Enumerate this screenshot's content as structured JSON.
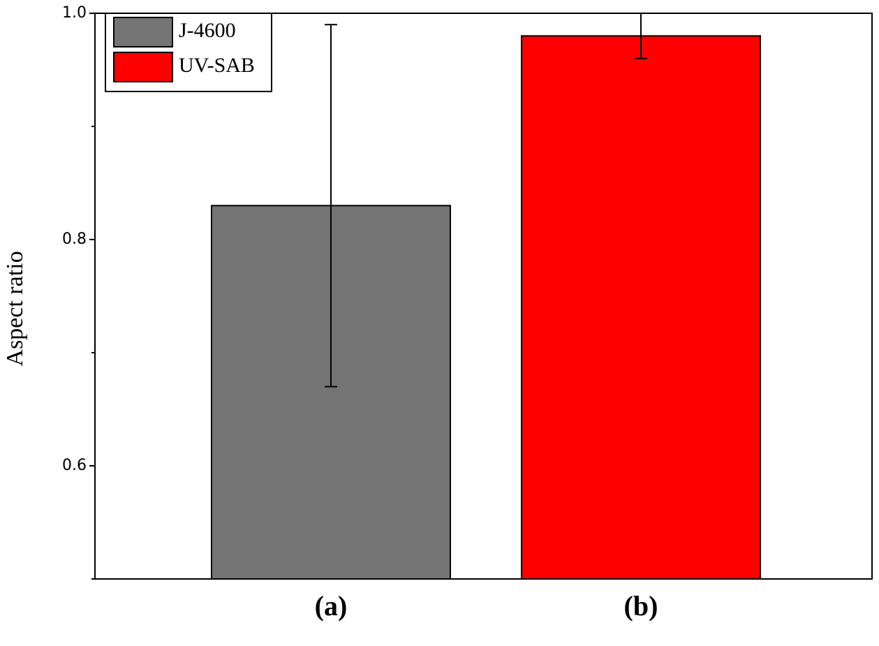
{
  "chart_data": {
    "type": "bar",
    "ylabel": "Aspect ratio",
    "categories": [
      "(a)",
      "(b)"
    ],
    "values": [
      0.83,
      0.98
    ],
    "errors": [
      0.16,
      0.02
    ],
    "colors": [
      "#747474",
      "#ff0000"
    ],
    "legend": [
      "J-4600",
      "UV-SAB"
    ],
    "legend_position": "upper left",
    "ylim": [
      0.5,
      1.0
    ],
    "yticks": [
      0.6,
      0.8,
      {
        "value": 1,
        "label": "1.0"
      }
    ],
    "minor_yticks": [
      0.5,
      0.7,
      0.9
    ]
  }
}
